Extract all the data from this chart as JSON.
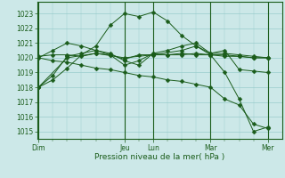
{
  "bg_color": "#cce8e8",
  "grid_color": "#99cccc",
  "line_color": "#1a5c1a",
  "ylabel": "Pression niveau de la mer( hPa )",
  "ylim": [
    1014.5,
    1023.8
  ],
  "yticks": [
    1015,
    1016,
    1017,
    1018,
    1019,
    1020,
    1021,
    1022,
    1023
  ],
  "x_day_labels": [
    "Dim",
    "Jeu",
    "Lun",
    "Mar",
    "Mer"
  ],
  "x_day_positions": [
    0,
    6,
    8,
    12,
    16
  ],
  "x_minor_ticks": [
    1,
    2,
    3,
    4,
    5,
    6,
    7,
    8,
    9,
    10,
    11,
    12,
    13,
    14,
    15,
    16
  ],
  "xlim": [
    -0.1,
    17.0
  ],
  "series": [
    {
      "x": [
        0,
        1,
        2,
        3,
        4,
        5,
        6,
        7,
        8,
        9,
        10,
        11,
        12,
        13,
        14,
        15,
        16
      ],
      "y": [
        1020.1,
        1020.2,
        1020.2,
        1020.1,
        1020.3,
        1020.2,
        1019.9,
        1020.2,
        1020.2,
        1020.2,
        1020.3,
        1020.2,
        1020.2,
        1020.1,
        1020.1,
        1020.0,
        1020.0
      ]
    },
    {
      "x": [
        0,
        1,
        2,
        3,
        4,
        5,
        6,
        7,
        8,
        9,
        10,
        11,
        12,
        13,
        14,
        15,
        16
      ],
      "y": [
        1020.0,
        1020.5,
        1021.0,
        1020.8,
        1020.5,
        1020.3,
        1019.8,
        1019.5,
        1020.3,
        1020.5,
        1020.8,
        1021.0,
        1020.3,
        1020.3,
        1020.2,
        1020.1,
        1020.0
      ]
    },
    {
      "x": [
        0,
        1,
        2,
        3,
        4,
        5,
        6,
        7,
        8,
        9,
        10,
        11,
        12,
        13,
        14,
        15,
        16
      ],
      "y": [
        1018.0,
        1018.5,
        1019.3,
        1020.2,
        1020.8,
        1022.2,
        1023.0,
        1022.8,
        1023.1,
        1022.5,
        1021.5,
        1020.8,
        1020.3,
        1020.5,
        1019.2,
        1019.1,
        1019.0
      ]
    },
    {
      "x": [
        0,
        1,
        2,
        3,
        4,
        5,
        6,
        7,
        8,
        9,
        10,
        11,
        12,
        13,
        14,
        15,
        16
      ],
      "y": [
        1018.0,
        1018.8,
        1020.1,
        1020.3,
        1020.5,
        1020.2,
        1019.5,
        1019.8,
        1020.3,
        1020.2,
        1020.2,
        1020.3,
        1020.2,
        1020.2,
        1020.1,
        1020.0,
        1020.0
      ]
    },
    {
      "x": [
        0,
        1,
        2,
        3,
        4,
        5,
        6,
        7,
        8,
        9,
        10,
        11,
        12,
        13,
        14,
        15,
        16
      ],
      "y": [
        1020.0,
        1019.8,
        1019.7,
        1019.5,
        1019.3,
        1019.2,
        1019.0,
        1018.8,
        1018.7,
        1018.5,
        1018.4,
        1018.2,
        1018.0,
        1017.2,
        1016.8,
        1015.5,
        1015.2
      ]
    },
    {
      "x": [
        0,
        2,
        4,
        6,
        8,
        10,
        11,
        12,
        13,
        14,
        15,
        16
      ],
      "y": [
        1018.0,
        1020.0,
        1020.3,
        1020.0,
        1020.2,
        1020.5,
        1020.8,
        1020.2,
        1019.0,
        1017.2,
        1015.0,
        1015.3
      ]
    }
  ]
}
